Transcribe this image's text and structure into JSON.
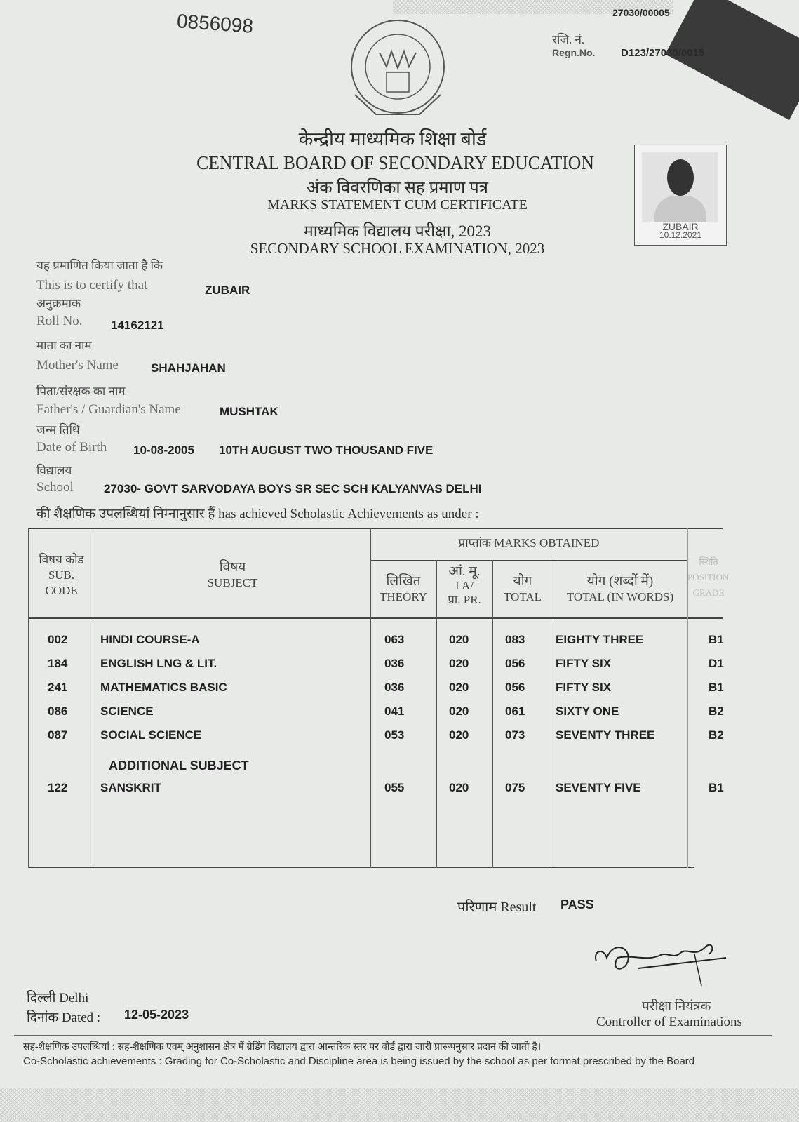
{
  "serial_no": "0856098",
  "top_ref": "27030/00005",
  "regn": {
    "label_hi": "रजि. नं.",
    "label_en": "Regn.No.",
    "value": "D123/27030/0015"
  },
  "header": {
    "board_hi": "केन्द्रीय माध्यमिक शिक्षा बोर्ड",
    "board_en": "CENTRAL BOARD OF SECONDARY EDUCATION",
    "doc_hi": "अंक विवरणिका सह प्रमाण पत्र",
    "doc_en": "MARKS STATEMENT CUM CERTIFICATE",
    "exam_hi": "माध्यमिक विद्यालय परीक्षा, 2023",
    "exam_en": "SECONDARY SCHOOL EXAMINATION, 2023"
  },
  "photo": {
    "name": "ZUBAIR",
    "date": "10.12.2021"
  },
  "fields": {
    "certify_hi": "यह प्रमाणित किया जाता है कि",
    "certify_en": "This is to certify that",
    "name": "ZUBAIR",
    "roll_hi": "अनुक्रमाक",
    "roll_en": "Roll No.",
    "roll": "14162121",
    "mother_hi": "माता का नाम",
    "mother_en": "Mother's Name",
    "mother": "SHAHJAHAN",
    "father_hi": "पिता/संरक्षक का नाम",
    "father_en": "Father's / Guardian's Name",
    "father": "MUSHTAK",
    "dob_hi": "जन्म तिथि",
    "dob_en": "Date of Birth",
    "dob": "10-08-2005",
    "dob_words": "10TH AUGUST TWO THOUSAND FIVE",
    "school_hi": "विद्यालय",
    "school_en": "School",
    "school": "27030- GOVT SARVODAYA BOYS SR SEC SCH KALYANVAS DELHI",
    "achieved": "की शैक्षणिक उपलब्धियां निम्नानुसार हैं has achieved Scholastic Achievements as under :"
  },
  "table": {
    "headers": {
      "code_hi": "विषय कोड",
      "code_en1": "SUB.",
      "code_en2": "CODE",
      "subject_hi": "विषय",
      "subject_en": "SUBJECT",
      "marks": "प्राप्तांक MARKS OBTAINED",
      "theory_hi": "लिखित",
      "theory_en": "THEORY",
      "ia_hi": "आं. मू.",
      "ia_en": "I A/",
      "pr": "प्रा. PR.",
      "total_hi": "योग",
      "total_en": "TOTAL",
      "words_hi": "योग (शब्दों में)",
      "words_en": "TOTAL (IN WORDS)",
      "pos_hi": "स्थिति",
      "pos_en1": "POSITIONAL",
      "pos_en2": "GRADE"
    },
    "rows": [
      {
        "code": "002",
        "subject": "HINDI COURSE-A",
        "theory": "063",
        "ia": "020",
        "total": "083",
        "words": "EIGHTY THREE",
        "grade": "B1"
      },
      {
        "code": "184",
        "subject": "ENGLISH LNG & LIT.",
        "theory": "036",
        "ia": "020",
        "total": "056",
        "words": "FIFTY SIX",
        "grade": "D1"
      },
      {
        "code": "241",
        "subject": "MATHEMATICS BASIC",
        "theory": "036",
        "ia": "020",
        "total": "056",
        "words": "FIFTY SIX",
        "grade": "B1"
      },
      {
        "code": "086",
        "subject": "SCIENCE",
        "theory": "041",
        "ia": "020",
        "total": "061",
        "words": "SIXTY ONE",
        "grade": "B2"
      },
      {
        "code": "087",
        "subject": "SOCIAL SCIENCE",
        "theory": "053",
        "ia": "020",
        "total": "073",
        "words": "SEVENTY THREE",
        "grade": "B2"
      }
    ],
    "additional_label": "ADDITIONAL SUBJECT",
    "additional": {
      "code": "122",
      "subject": "SANSKRIT",
      "theory": "055",
      "ia": "020",
      "total": "075",
      "words": "SEVENTY FIVE",
      "grade": "B1"
    }
  },
  "result": {
    "label": "परिणाम Result",
    "value": "PASS"
  },
  "place": "दिल्ली Delhi",
  "dated": {
    "label": "दिनांक Dated :",
    "value": "12-05-2023"
  },
  "controller": {
    "hi": "परीक्षा नियंत्रक",
    "en": "Controller of Examinations"
  },
  "footer": {
    "hi": "सह-शैक्षणिक उपलब्धियां : सह-शैक्षणिक एवम् अनुशासन क्षेत्र में ग्रेडिंग विद्यालय द्वारा आन्तरिक स्तर पर बोर्ड द्वारा जारी प्रारूपनुसार प्रदान की जाती है।",
    "en": "Co-Scholastic achievements : Grading for Co-Scholastic and Discipline area is being issued by the school as per format prescribed by the Board"
  }
}
